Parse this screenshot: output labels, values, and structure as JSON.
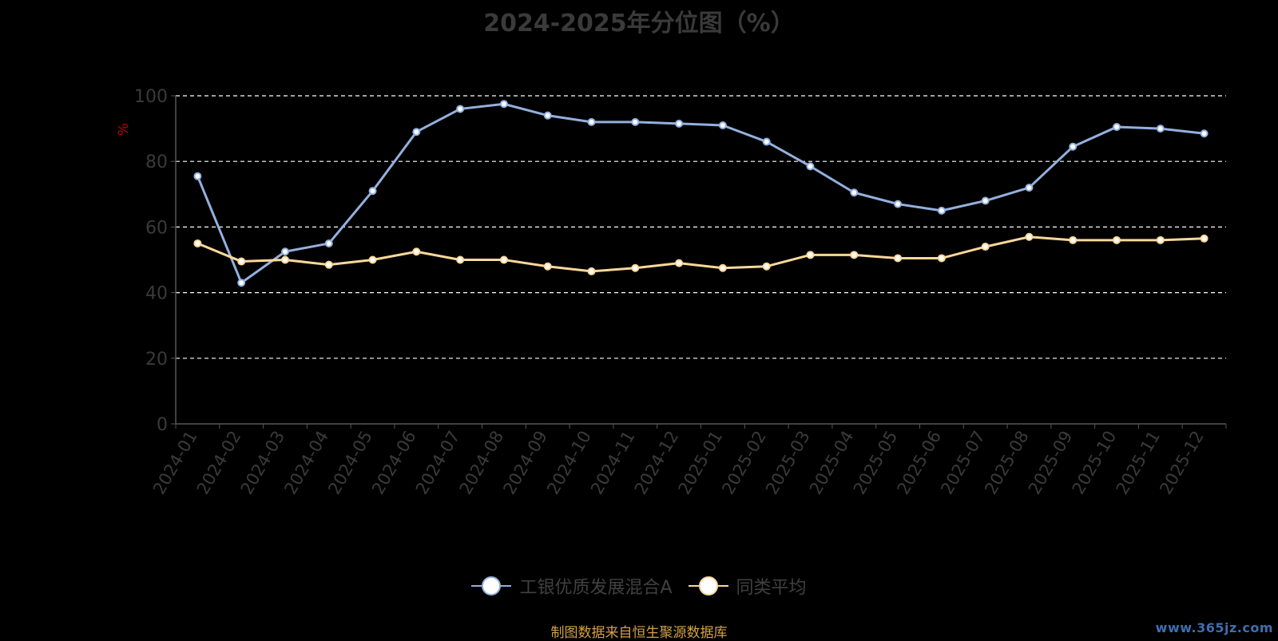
{
  "chart_data": {
    "type": "line",
    "title": "2024-2025年分位图（%）",
    "ylabel": "%",
    "ylim": [
      0,
      100
    ],
    "yticks": [
      0,
      20,
      40,
      60,
      80,
      100
    ],
    "grid": true,
    "legend_position": "bottom",
    "categories": [
      "2024-01",
      "2024-02",
      "2024-03",
      "2024-04",
      "2024-05",
      "2024-06",
      "2024-07",
      "2024-08",
      "2024-09",
      "2024-10",
      "2024-11",
      "2024-12",
      "2025-01",
      "2025-02",
      "2025-03",
      "2025-04",
      "2025-05",
      "2025-06",
      "2025-07",
      "2025-08",
      "2025-09",
      "2025-10",
      "2025-11",
      "2025-12"
    ],
    "series": [
      {
        "name": "工银优质发展混合A",
        "color": "#93b0de",
        "values": [
          75.5,
          43.0,
          52.5,
          55.0,
          71.0,
          89.0,
          96.0,
          97.5,
          94.0,
          92.0,
          92.0,
          91.5,
          91.0,
          86.0,
          78.5,
          70.5,
          67.0,
          65.0,
          68.0,
          72.0,
          84.5,
          90.5,
          90.0,
          88.5
        ]
      },
      {
        "name": "同类平均",
        "color": "#fbd89a",
        "values": [
          55.0,
          49.5,
          50.0,
          48.5,
          50.0,
          52.5,
          50.0,
          50.0,
          48.0,
          46.5,
          47.5,
          49.0,
          47.5,
          48.0,
          51.5,
          51.5,
          50.5,
          50.5,
          54.0,
          57.0,
          56.0,
          56.0,
          56.0,
          56.5
        ]
      }
    ]
  },
  "footer": {
    "source": "制图数据来自恒生聚源数据库",
    "watermark": "www.365jz.com"
  }
}
